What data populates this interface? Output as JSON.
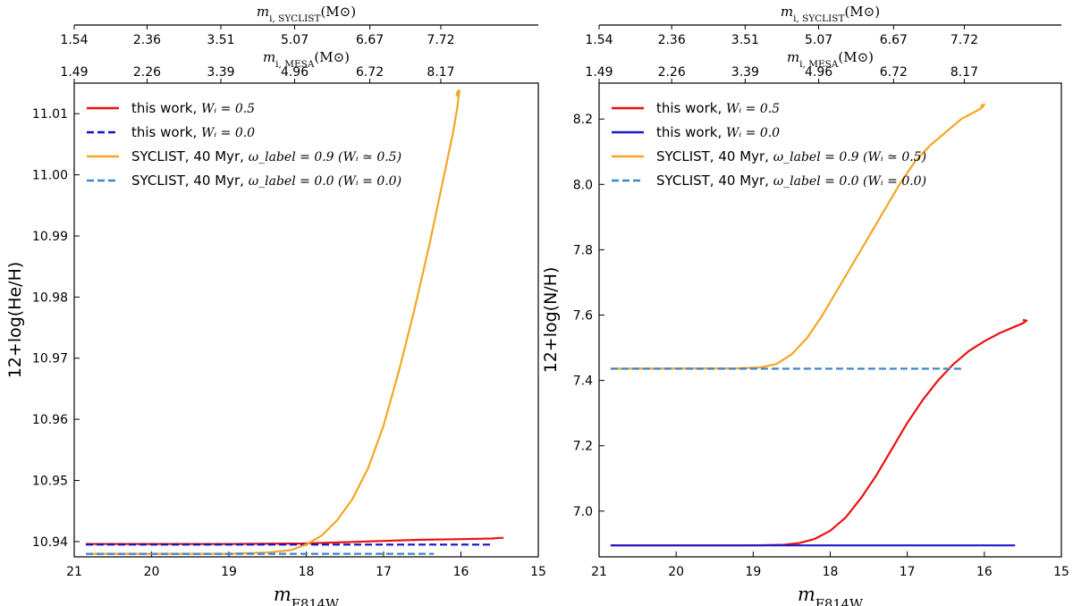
{
  "colors": {
    "red": "#ee1111",
    "navy": "#1111cc",
    "blue": "#1a1acc",
    "orange": "#f5a623",
    "steel": "#3d86c8"
  },
  "chart_data": [
    {
      "type": "line",
      "title": "",
      "xlabel": "m_F814W",
      "ylabel": "12+log(He/H)",
      "xlim": [
        21,
        15
      ],
      "ylim": [
        10.9375,
        11.015
      ],
      "xticks": [
        "21",
        "20",
        "19",
        "18",
        "17",
        "16",
        "15"
      ],
      "yticks": [
        "10.94",
        "10.95",
        "10.96",
        "10.97",
        "10.98",
        "10.99",
        "11.00",
        "11.01"
      ],
      "top_axis_syclist": {
        "label": "m_i,SYCLIST(M⊙)",
        "ticks": [
          "1.54",
          "2.36",
          "3.51",
          "5.07",
          "6.67",
          "7.72"
        ]
      },
      "top_axis_mesa": {
        "label": "m_i,MESA(M⊙)",
        "ticks": [
          "1.49",
          "2.26",
          "3.39",
          "4.96",
          "6.72",
          "8.17"
        ]
      },
      "legend_position": "upper-left",
      "series": [
        {
          "name": "this work, W_i = 0.5",
          "label_text": "this work, ",
          "label_math": "Wᵢ = 0.5",
          "color": "#ee1111",
          "style": "solid",
          "x": [
            20.85,
            19,
            18,
            17.5,
            17,
            16.5,
            16,
            15.6,
            15.5,
            15.45
          ],
          "y": [
            10.9396,
            10.9396,
            10.9397,
            10.9399,
            10.9401,
            10.9403,
            10.9404,
            10.9405,
            10.9406,
            10.9406
          ]
        },
        {
          "name": "this work, W_i = 0.0",
          "label_text": "this work, ",
          "label_math": "Wᵢ = 0.0",
          "color": "#1111cc",
          "style": "dashed",
          "x": [
            20.85,
            15.6
          ],
          "y": [
            10.9395,
            10.9395
          ]
        },
        {
          "name": "SYCLIST, 40 Myr, omega_label = 0.9 (W_i ≃ 0.5)",
          "label_text": "SYCLIST, 40 Myr, ",
          "label_math": "ω_label = 0.9 (Wᵢ ≃ 0.5)",
          "color": "#f5a623",
          "style": "solid",
          "x": [
            20.85,
            19.5,
            19,
            18.5,
            18.2,
            18,
            17.8,
            17.6,
            17.4,
            17.2,
            17.0,
            16.8,
            16.6,
            16.4,
            16.2,
            16.1,
            16.05,
            16.03,
            16.02,
            16.04,
            16.06
          ],
          "y": [
            10.938,
            10.938,
            10.938,
            10.9382,
            10.9386,
            10.9395,
            10.941,
            10.9435,
            10.947,
            10.952,
            10.959,
            10.968,
            10.978,
            10.989,
            11.001,
            11.007,
            11.0108,
            11.0128,
            11.0138,
            11.0137,
            11.0128
          ]
        },
        {
          "name": "SYCLIST, 40 Myr, omega_label = 0.0 (W_i = 0.0)",
          "label_text": "SYCLIST, 40 Myr, ",
          "label_math": "ω_label = 0.0 (Wᵢ = 0.0)",
          "color": "#3d86c8",
          "style": "dashed",
          "x": [
            20.85,
            16.35
          ],
          "y": [
            10.938,
            10.938
          ]
        }
      ]
    },
    {
      "type": "line",
      "title": "",
      "xlabel": "m_F814W",
      "ylabel": "12+log(N/H)",
      "xlim": [
        21,
        15
      ],
      "ylim": [
        6.86,
        8.31
      ],
      "xticks": [
        "21",
        "20",
        "19",
        "18",
        "17",
        "16",
        "15"
      ],
      "yticks": [
        "7.0",
        "7.2",
        "7.4",
        "7.6",
        "7.8",
        "8.0",
        "8.2"
      ],
      "top_axis_syclist": {
        "label": "m_i,SYCLIST(M⊙)",
        "ticks": [
          "1.54",
          "2.36",
          "3.51",
          "5.07",
          "6.67",
          "7.72"
        ]
      },
      "top_axis_mesa": {
        "label": "m_i,MESA(M⊙)",
        "ticks": [
          "1.49",
          "2.26",
          "3.39",
          "4.96",
          "6.72",
          "8.17"
        ]
      },
      "legend_position": "upper-left",
      "series": [
        {
          "name": "this work, W_i = 0.5",
          "label_text": "this work, ",
          "label_math": "Wᵢ = 0.5",
          "color": "#ee1111",
          "style": "solid",
          "x": [
            20.85,
            19,
            18.6,
            18.4,
            18.2,
            18.0,
            17.8,
            17.6,
            17.4,
            17.2,
            17.0,
            16.8,
            16.6,
            16.4,
            16.2,
            16.0,
            15.8,
            15.6,
            15.5,
            15.45,
            15.5
          ],
          "y": [
            6.895,
            6.895,
            6.897,
            6.902,
            6.915,
            6.94,
            6.98,
            7.04,
            7.11,
            7.19,
            7.27,
            7.34,
            7.4,
            7.45,
            7.49,
            7.52,
            7.545,
            7.565,
            7.575,
            7.583,
            7.585
          ]
        },
        {
          "name": "this work, W_i = 0.0",
          "label_text": "this work, ",
          "label_math": "Wᵢ = 0.0",
          "color": "#1a1acc",
          "style": "solid",
          "x": [
            20.85,
            15.6
          ],
          "y": [
            6.895,
            6.895
          ]
        },
        {
          "name": "SYCLIST, 40 Myr, omega_label = 0.9 (W_i ≃ 0.5)",
          "label_text": "SYCLIST, 40 Myr, ",
          "label_math": "ω_label = 0.9 (Wᵢ ≃ 0.5)",
          "color": "#f5a623",
          "style": "solid",
          "x": [
            20.85,
            19.2,
            18.9,
            18.7,
            18.5,
            18.3,
            18.1,
            17.9,
            17.7,
            17.5,
            17.3,
            17.1,
            16.9,
            16.7,
            16.5,
            16.3,
            16.1,
            16.03,
            16.0,
            16.05
          ],
          "y": [
            7.436,
            7.437,
            7.44,
            7.45,
            7.48,
            7.53,
            7.6,
            7.68,
            7.76,
            7.84,
            7.92,
            8.0,
            8.07,
            8.12,
            8.16,
            8.2,
            8.225,
            8.235,
            8.245,
            8.24
          ]
        },
        {
          "name": "SYCLIST, 40 Myr, omega_label = 0.0 (W_i = 0.0)",
          "label_text": "SYCLIST, 40 Myr, ",
          "label_math": "ω_label = 0.0 (Wᵢ = 0.0)",
          "color": "#3d86c8",
          "style": "dashed",
          "x": [
            20.85,
            16.3
          ],
          "y": [
            7.436,
            7.436
          ]
        }
      ]
    }
  ]
}
